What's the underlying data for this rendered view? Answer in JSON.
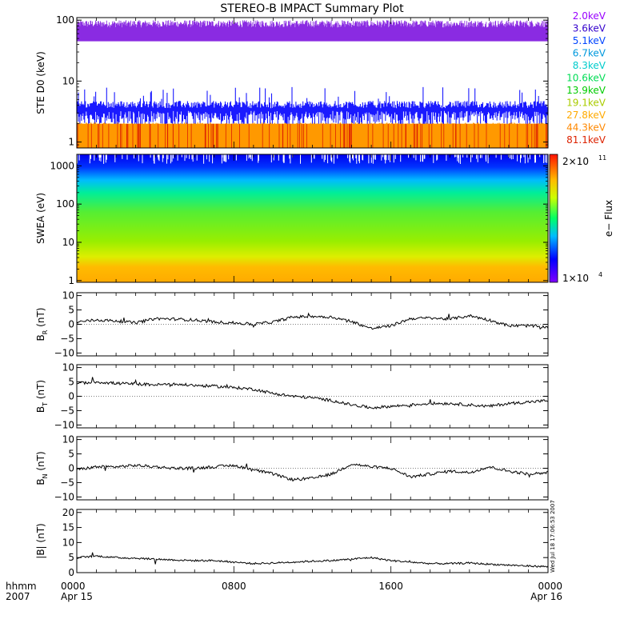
{
  "title": "STEREO-B IMPACT Summary Plot",
  "chart_data": [
    {
      "id": "ste",
      "type": "line",
      "ylabel": "STE D0 (keV)",
      "yscale": "log",
      "ylim": [
        0.8,
        110
      ],
      "yticks": [
        "1",
        "10",
        "100"
      ],
      "ytick_values": [
        1,
        10,
        100
      ],
      "legend": [
        {
          "label": "2.0keV",
          "color": "#9900ff"
        },
        {
          "label": "3.6keV",
          "color": "#3300cc"
        },
        {
          "label": "5.1keV",
          "color": "#0044ff"
        },
        {
          "label": "6.7keV",
          "color": "#0099dd"
        },
        {
          "label": "8.3keV",
          "color": "#00cccc"
        },
        {
          "label": "10.6keV",
          "color": "#00dd55"
        },
        {
          "label": "13.9keV",
          "color": "#00cc00"
        },
        {
          "label": "19.1keV",
          "color": "#aacc00"
        },
        {
          "label": "27.8keV",
          "color": "#ffaa00"
        },
        {
          "label": "44.3keV",
          "color": "#ff8800"
        },
        {
          "label": "81.1keV",
          "color": "#dd2200"
        }
      ],
      "bands": [
        {
          "name": "2.0keV",
          "color": "#8a2be2",
          "low": 45,
          "high": 95
        },
        {
          "name": "5.1keV",
          "color": "#1a1aff",
          "low": 2.5,
          "high": 4.5
        },
        {
          "name": "44.3keV",
          "color": "#ff9900",
          "low": 0.8,
          "high": 2.0
        }
      ]
    },
    {
      "id": "swea",
      "type": "heatmap",
      "ylabel": "SWEA (eV)",
      "yscale": "log",
      "ylim": [
        0.9,
        2000
      ],
      "yticks": [
        "1",
        "10",
        "100",
        "1000"
      ],
      "ytick_values": [
        1,
        10,
        100,
        1000
      ],
      "colorbar": {
        "label": "e− Flux",
        "max": "2×10",
        "max_exp": "11",
        "min": "1×10",
        "min_exp": "4"
      }
    },
    {
      "id": "br",
      "type": "line",
      "ylabel_main": "B",
      "ylabel_sub": "R",
      "ylabel_unit": " (nT)",
      "ylim": [
        -11,
        11
      ],
      "yticks": [
        "10",
        "5",
        "0",
        "−5",
        "−10"
      ],
      "ytick_values": [
        10,
        5,
        0,
        -5,
        -10
      ],
      "x": [
        0,
        1,
        2,
        3,
        4,
        5,
        6,
        7,
        8,
        9,
        10,
        11,
        12,
        13,
        14,
        15,
        16,
        17,
        18,
        19,
        20,
        21,
        22,
        23,
        24
      ],
      "y": [
        0.8,
        1.5,
        1.2,
        0.5,
        2.0,
        1.8,
        1.5,
        0.8,
        0.5,
        0.0,
        0.8,
        2.5,
        2.8,
        2.5,
        1.0,
        -1.5,
        -0.5,
        2.0,
        2.2,
        1.8,
        3.0,
        1.5,
        -0.5,
        -0.5,
        -1.0
      ]
    },
    {
      "id": "bt",
      "type": "line",
      "ylabel_main": "B",
      "ylabel_sub": "T",
      "ylabel_unit": " (nT)",
      "ylim": [
        -11,
        11
      ],
      "yticks": [
        "10",
        "5",
        "0",
        "−5",
        "−10"
      ],
      "ytick_values": [
        10,
        5,
        0,
        -5,
        -10
      ],
      "x": [
        0,
        1,
        2,
        3,
        4,
        5,
        6,
        7,
        8,
        9,
        10,
        11,
        12,
        13,
        14,
        15,
        16,
        17,
        18,
        19,
        20,
        21,
        22,
        23,
        24
      ],
      "y": [
        4.5,
        5.0,
        4.5,
        4.3,
        4.0,
        4.2,
        3.8,
        3.5,
        3.0,
        2.5,
        1.0,
        0.0,
        -0.5,
        -1.5,
        -3.0,
        -4.0,
        -3.5,
        -3.0,
        -2.5,
        -2.5,
        -3.0,
        -3.5,
        -2.5,
        -2.0,
        -1.5
      ]
    },
    {
      "id": "bn",
      "type": "line",
      "ylabel_main": "B",
      "ylabel_sub": "N",
      "ylabel_unit": " (nT)",
      "ylim": [
        -11,
        11
      ],
      "yticks": [
        "10",
        "5",
        "0",
        "−5",
        "−10"
      ],
      "ytick_values": [
        10,
        5,
        0,
        -5,
        -10
      ],
      "x": [
        0,
        1,
        2,
        3,
        4,
        5,
        6,
        7,
        8,
        9,
        10,
        11,
        12,
        13,
        14,
        15,
        16,
        17,
        18,
        19,
        20,
        21,
        22,
        23,
        24
      ],
      "y": [
        -0.5,
        0.5,
        0.5,
        1.0,
        0.5,
        0.0,
        0.0,
        0.5,
        1.0,
        -0.5,
        -2.0,
        -4.0,
        -3.5,
        -2.0,
        1.5,
        0.5,
        0.0,
        -3.0,
        -2.0,
        -1.0,
        -1.5,
        0.5,
        -1.0,
        -2.0,
        -1.5
      ]
    },
    {
      "id": "bmag",
      "type": "line",
      "ylabel": "|B| (nT)",
      "ylim": [
        0,
        21
      ],
      "yticks": [
        "20",
        "15",
        "10",
        "5",
        "0"
      ],
      "ytick_values": [
        20,
        15,
        10,
        5,
        0
      ],
      "x": [
        0,
        1,
        2,
        3,
        4,
        5,
        6,
        7,
        8,
        9,
        10,
        11,
        12,
        13,
        14,
        15,
        16,
        17,
        18,
        19,
        20,
        21,
        22,
        23,
        24
      ],
      "y": [
        5.0,
        5.5,
        5.0,
        4.8,
        4.5,
        4.2,
        4.0,
        4.0,
        3.5,
        3.0,
        3.2,
        3.5,
        3.8,
        4.0,
        4.5,
        5.0,
        4.0,
        3.5,
        3.0,
        3.0,
        3.2,
        2.8,
        2.5,
        2.2,
        2.0
      ]
    }
  ],
  "x_axis": {
    "label1": "hhmm",
    "label2": "2007",
    "ticks": [
      {
        "value": 0,
        "label": "0000",
        "date": "Apr 15"
      },
      {
        "value": 8,
        "label": "0800",
        "date": ""
      },
      {
        "value": 16,
        "label": "1600",
        "date": ""
      },
      {
        "value": 24,
        "label": "0000",
        "date": "Apr 16"
      }
    ]
  },
  "timestamp": "Wed Jul 18 17:06:53 2007"
}
